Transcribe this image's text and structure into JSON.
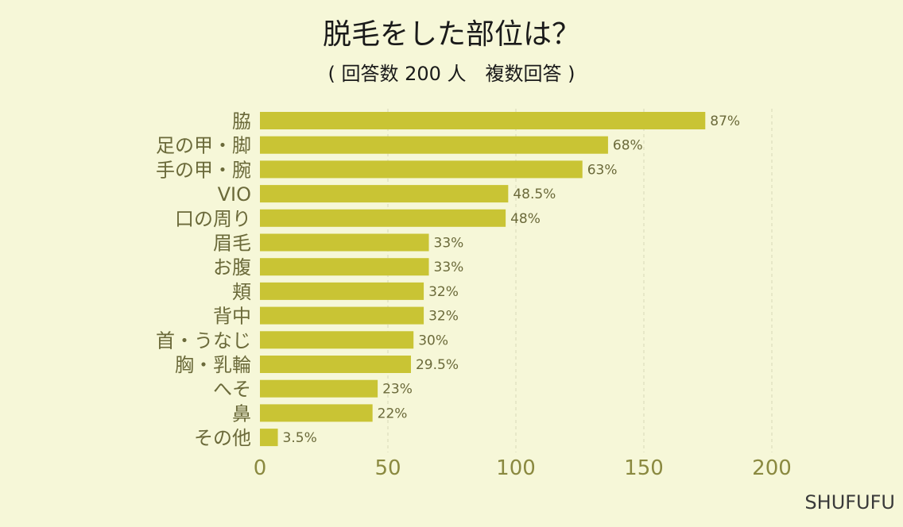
{
  "chart_data": {
    "type": "bar",
    "orientation": "horizontal",
    "title": "脱毛をした部位は？",
    "subtitle": "( 回答数 200 人　複数回答 )",
    "categories": [
      "脇",
      "足の甲・脚",
      "手の甲・腕",
      "VIO",
      "口の周り",
      "眉毛",
      "お腹",
      "頬",
      "背中",
      "首・うなじ",
      "胸・乳輪",
      "へそ",
      "鼻",
      "その他"
    ],
    "values": [
      174,
      136,
      126,
      97,
      96,
      66,
      66,
      64,
      64,
      60,
      59,
      46,
      44,
      7
    ],
    "value_labels": [
      "87%",
      "68%",
      "63%",
      "48.5%",
      "48%",
      "33%",
      "33%",
      "32%",
      "32%",
      "30%",
      "29.5%",
      "23%",
      "22%",
      "3.5%"
    ],
    "xticks": [
      "0",
      "50",
      "100",
      "150",
      "200"
    ],
    "xlim": [
      0,
      200
    ],
    "grid": true,
    "bar_color": "#c9c434"
  },
  "credit": "SHUFUFU"
}
